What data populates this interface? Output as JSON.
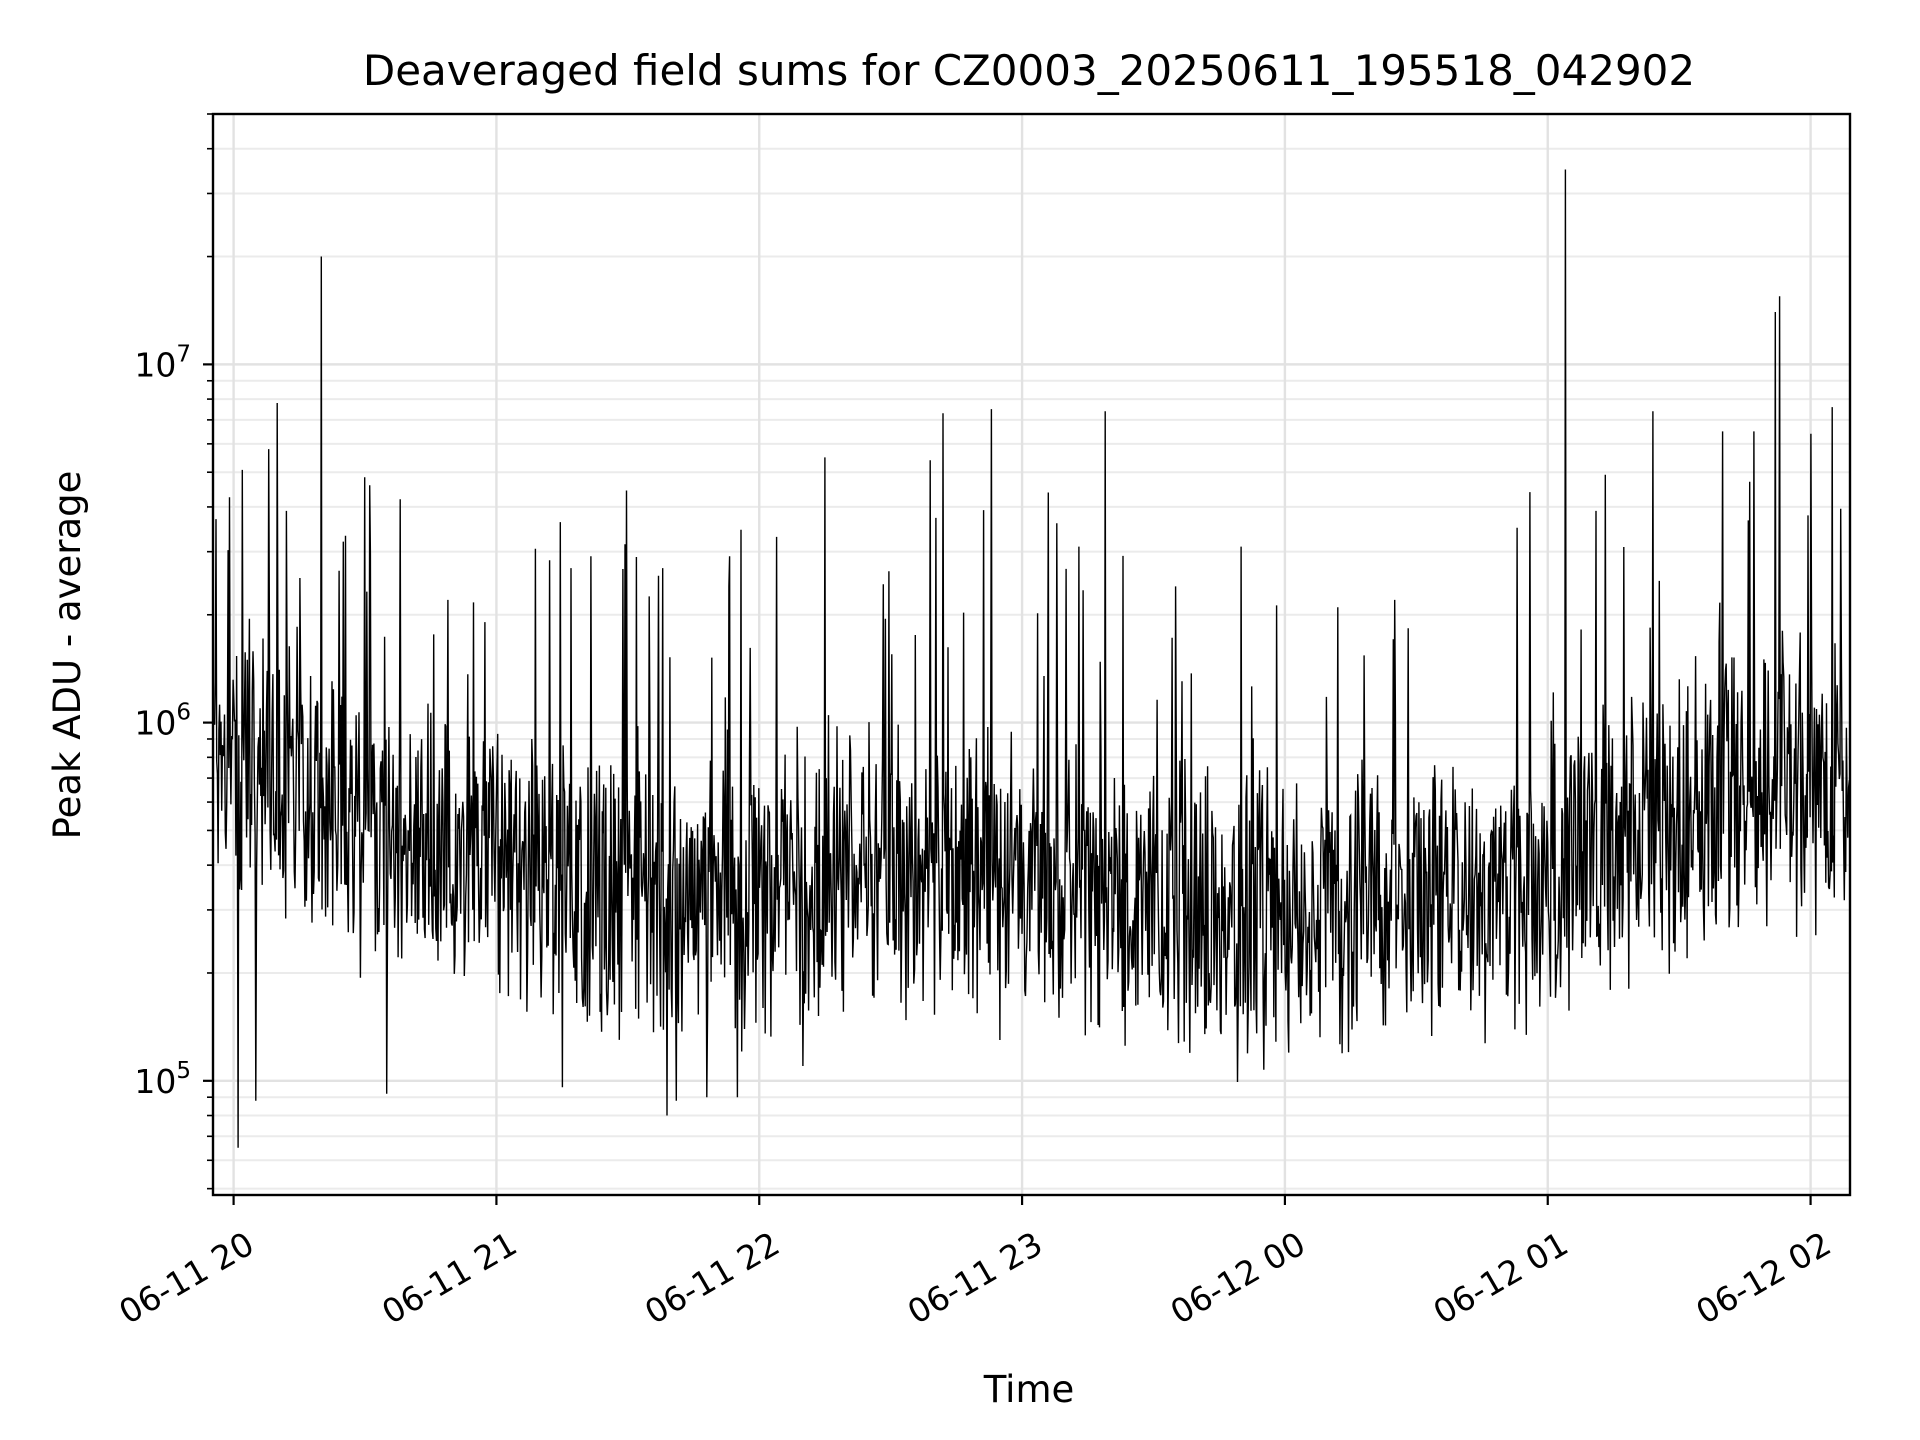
{
  "chart_data": {
    "type": "line",
    "title": "Deaveraged field sums for CZ0003_20250611_195518_042902",
    "xlabel": "Time",
    "ylabel": "Peak ADU - average",
    "yscale": "log",
    "ylim": [
      48000,
      50000000
    ],
    "xlim": [
      "2025-06-11 19:55:18",
      "2025-06-12 02:09:00"
    ],
    "grid": true,
    "x_ticks": [
      "06-11 20",
      "06-11 21",
      "06-11 22",
      "06-11 23",
      "06-12 00",
      "06-12 01",
      "06-12 02"
    ],
    "y_ticks": [
      {
        "value": 100000,
        "base": "10",
        "exp": "5"
      },
      {
        "value": 1000000,
        "base": "10",
        "exp": "6"
      },
      {
        "value": 10000000,
        "base": "10",
        "exp": "7"
      }
    ],
    "series": [
      {
        "color": "#000000",
        "baseline": [
          [
            "2025-06-11 19:55:30",
            850000
          ],
          [
            "2025-06-11 20:10:00",
            750000
          ],
          [
            "2025-06-11 20:25:00",
            550000
          ],
          [
            "2025-06-11 20:40:00",
            430000
          ],
          [
            "2025-06-11 21:00:00",
            400000
          ],
          [
            "2025-06-11 21:30:00",
            350000
          ],
          [
            "2025-06-11 21:55:00",
            300000
          ],
          [
            "2025-06-11 22:20:00",
            380000
          ],
          [
            "2025-06-11 22:45:00",
            350000
          ],
          [
            "2025-06-11 23:10:00",
            380000
          ],
          [
            "2025-06-11 23:30:00",
            290000
          ],
          [
            "2025-06-12 00:00:00",
            270000
          ],
          [
            "2025-06-12 00:30:00",
            330000
          ],
          [
            "2025-06-12 00:50:00",
            320000
          ],
          [
            "2025-06-12 01:10:00",
            420000
          ],
          [
            "2025-06-12 01:30:00",
            520000
          ],
          [
            "2025-06-12 01:50:00",
            700000
          ],
          [
            "2025-06-12 02:09:00",
            600000
          ]
        ],
        "peaks": [
          [
            "2025-06-11 19:56:00",
            3700000
          ],
          [
            "2025-06-11 20:01:00",
            2800000
          ],
          [
            "2025-06-11 20:05:00",
            3400000
          ],
          [
            "2025-06-11 20:08:00",
            5800000
          ],
          [
            "2025-06-11 20:10:00",
            7800000
          ],
          [
            "2025-06-11 20:12:00",
            3900000
          ],
          [
            "2025-06-11 20:20:00",
            20000000
          ],
          [
            "2025-06-11 20:25:00",
            3200000
          ],
          [
            "2025-06-11 20:31:00",
            4600000
          ],
          [
            "2025-06-11 20:38:00",
            4200000
          ],
          [
            "2025-06-11 20:49:00",
            2200000
          ],
          [
            "2025-06-11 21:17:00",
            2700000
          ],
          [
            "2025-06-11 21:32:00",
            2900000
          ],
          [
            "2025-06-11 21:38:00",
            2700000
          ],
          [
            "2025-06-11 21:53:00",
            2400000
          ],
          [
            "2025-06-11 22:04:00",
            3300000
          ],
          [
            "2025-06-11 22:15:00",
            5500000
          ],
          [
            "2025-06-11 22:39:00",
            5400000
          ],
          [
            "2025-06-11 22:42:00",
            7300000
          ],
          [
            "2025-06-11 22:53:00",
            7500000
          ],
          [
            "2025-06-11 23:08:00",
            3600000
          ],
          [
            "2025-06-11 23:13:00",
            3100000
          ],
          [
            "2025-06-11 23:19:00",
            7400000
          ],
          [
            "2025-06-11 23:35:00",
            2400000
          ],
          [
            "2025-06-11 23:50:00",
            3100000
          ],
          [
            "2025-06-12 00:12:00",
            2100000
          ],
          [
            "2025-06-12 00:25:00",
            2200000
          ],
          [
            "2025-06-12 00:53:00",
            3500000
          ],
          [
            "2025-06-12 00:56:00",
            4400000
          ],
          [
            "2025-06-12 01:04:00",
            35000000
          ],
          [
            "2025-06-12 01:11:00",
            3900000
          ],
          [
            "2025-06-12 01:24:00",
            7400000
          ],
          [
            "2025-06-12 01:40:00",
            6500000
          ],
          [
            "2025-06-12 01:47:00",
            6500000
          ],
          [
            "2025-06-12 01:52:00",
            14000000
          ],
          [
            "2025-06-12 01:53:00",
            15500000
          ],
          [
            "2025-06-12 02:00:00",
            6400000
          ],
          [
            "2025-06-12 02:05:00",
            7600000
          ]
        ],
        "troughs": [
          [
            "2025-06-11 20:01:00",
            65000
          ],
          [
            "2025-06-11 20:05:00",
            88000
          ],
          [
            "2025-06-11 20:35:00",
            92000
          ],
          [
            "2025-06-11 21:15:00",
            96000
          ],
          [
            "2025-06-11 21:39:00",
            80000
          ],
          [
            "2025-06-11 21:41:00",
            88000
          ],
          [
            "2025-06-11 21:48:00",
            90000
          ],
          [
            "2025-06-11 21:55:00",
            90000
          ],
          [
            "2025-06-11 22:10:00",
            110000
          ],
          [
            "2025-06-11 22:55:00",
            130000
          ],
          [
            "2025-06-11 23:42:00",
            140000
          ],
          [
            "2025-06-12 01:50:00",
            270000
          ]
        ]
      }
    ]
  }
}
